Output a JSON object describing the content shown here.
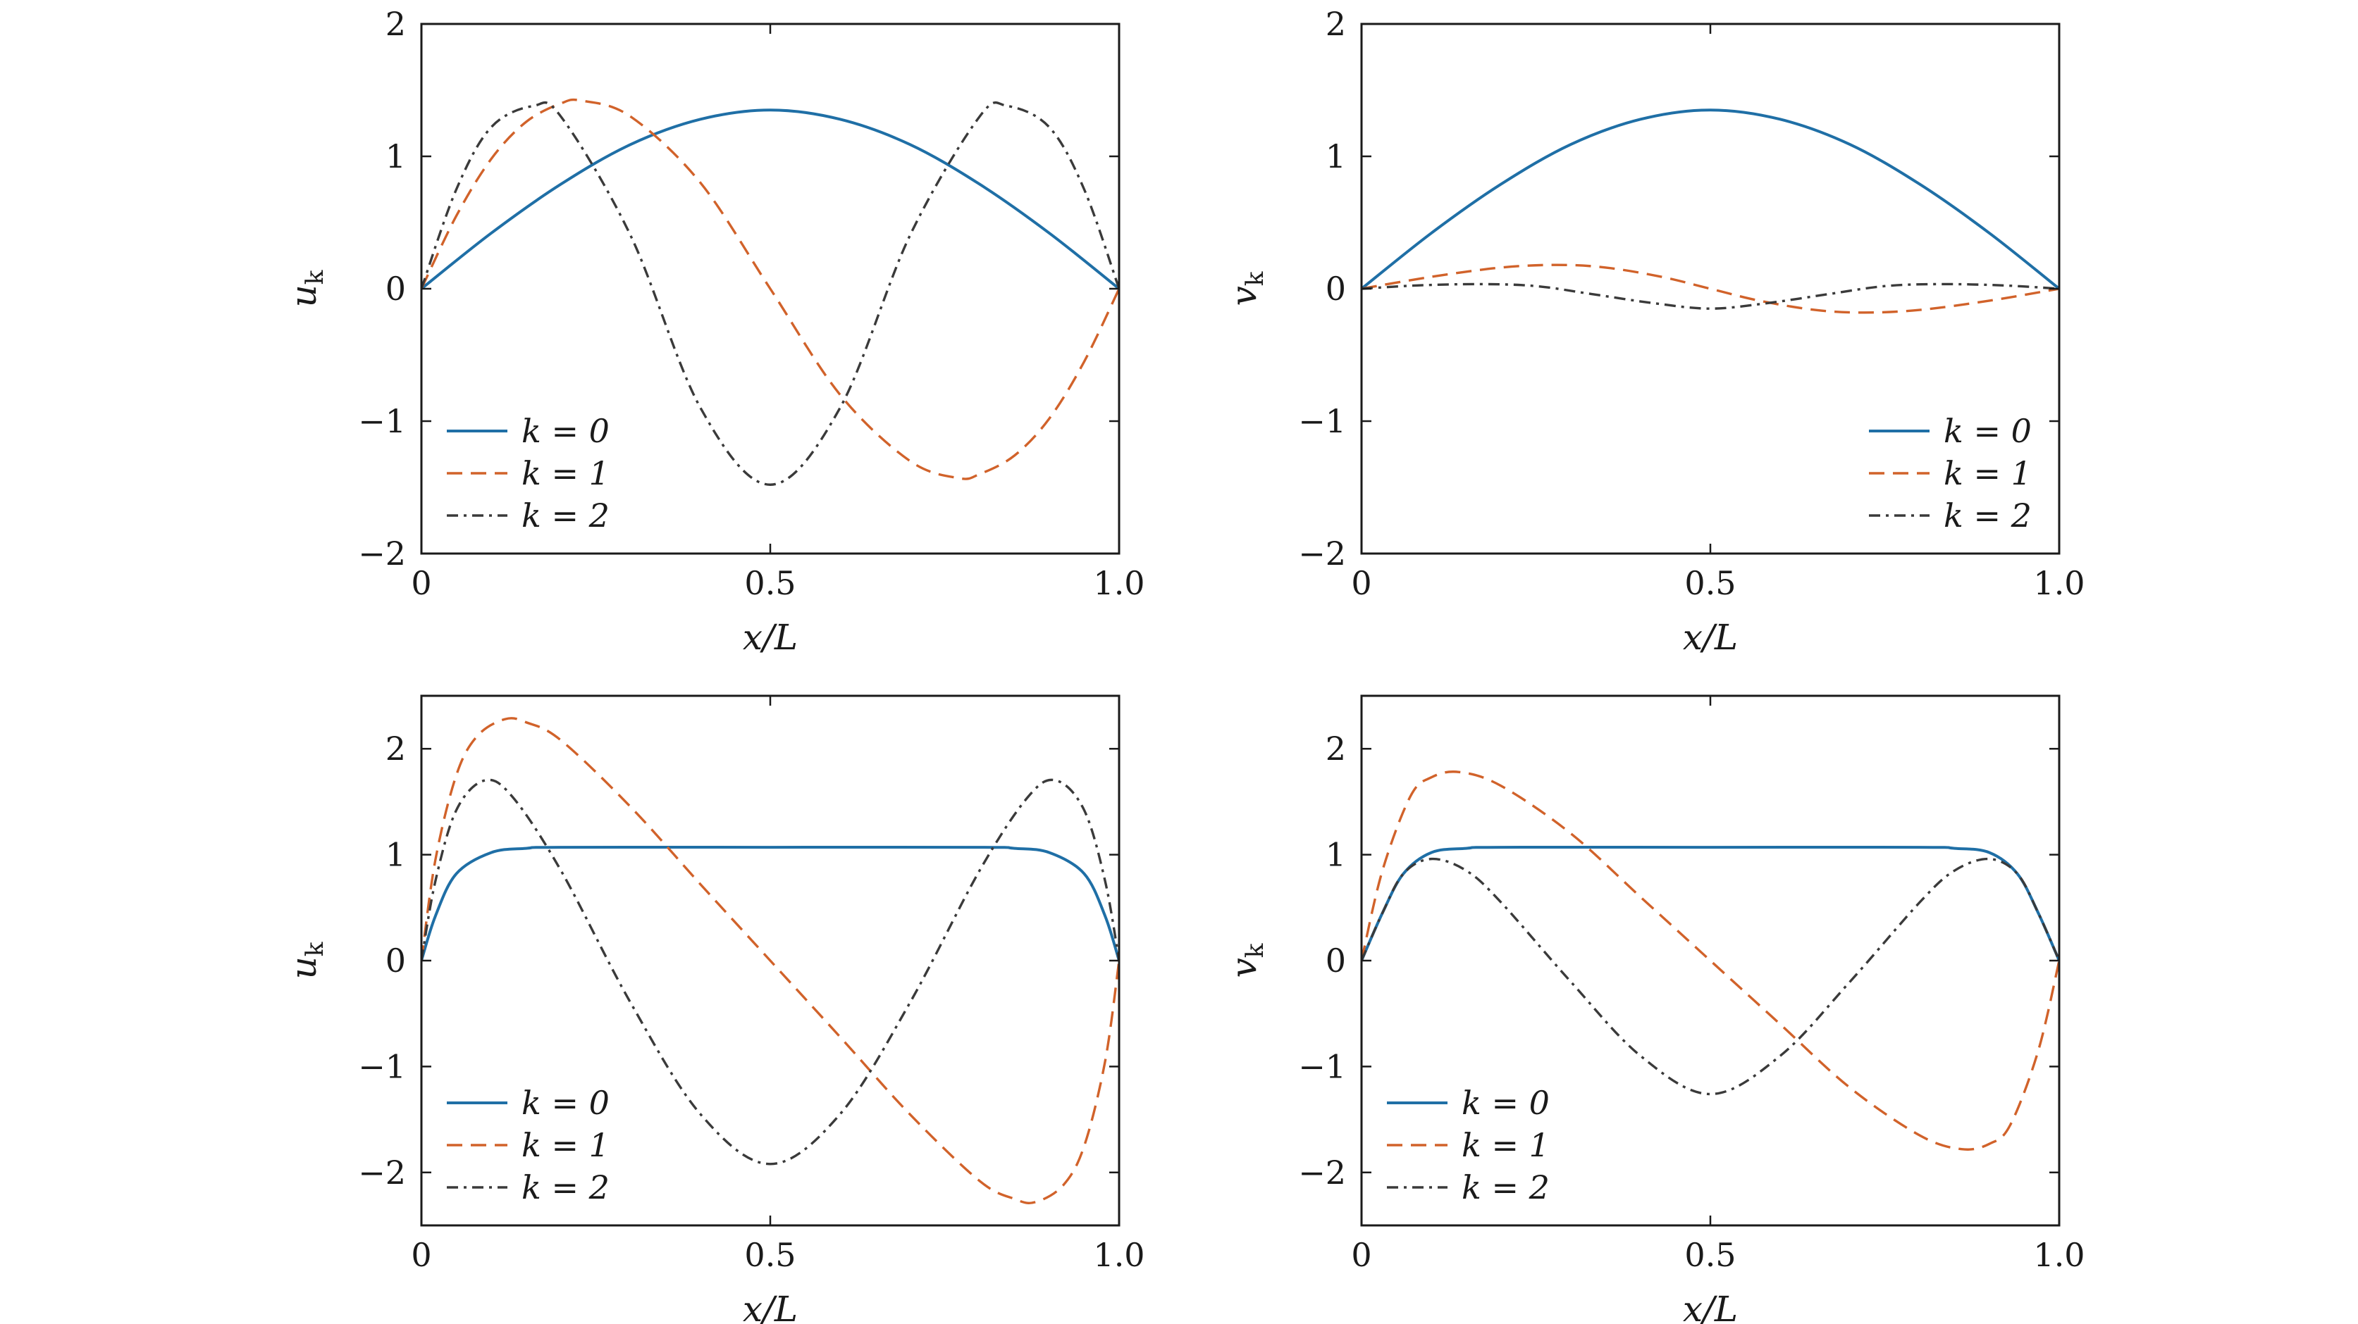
{
  "colors": {
    "k0": "#1f6fa6",
    "k1": "#d1622a",
    "k2": "#3a3a3a",
    "axes": "#1a1a1a"
  },
  "chart_data": [
    {
      "type": "line",
      "title": "",
      "xlabel": "x/L",
      "ylabel": "u_k",
      "xlim": [
        0,
        1
      ],
      "ylim": [
        -2,
        2
      ],
      "xticks": [
        {
          "v": 0,
          "label": "0"
        },
        {
          "v": 0.5,
          "label": "0.5"
        },
        {
          "v": 1,
          "label": "1.0"
        }
      ],
      "yticks": [
        {
          "v": -2,
          "label": "−2"
        },
        {
          "v": -1,
          "label": "−1"
        },
        {
          "v": 0,
          "label": "0"
        },
        {
          "v": 1,
          "label": "1"
        },
        {
          "v": 2,
          "label": "2"
        }
      ],
      "grid": false,
      "legend": "bottom-left",
      "series": [
        {
          "name": "k = 0",
          "style": "solid",
          "x": [
            0,
            0.1,
            0.2,
            0.3,
            0.4,
            0.5,
            0.6,
            0.7,
            0.8,
            0.9,
            1.0
          ],
          "y": [
            0,
            0.42,
            0.79,
            1.09,
            1.28,
            1.35,
            1.28,
            1.09,
            0.79,
            0.42,
            0
          ]
        },
        {
          "name": "k = 1",
          "style": "dashed",
          "x": [
            0,
            0.05,
            0.1,
            0.15,
            0.2,
            0.23,
            0.3,
            0.4,
            0.5,
            0.6,
            0.7,
            0.77,
            0.8,
            0.85,
            0.9,
            0.95,
            1.0
          ],
          "y": [
            0,
            0.55,
            0.98,
            1.26,
            1.4,
            1.42,
            1.3,
            0.8,
            0,
            -0.8,
            -1.3,
            -1.43,
            -1.4,
            -1.26,
            -0.98,
            -0.55,
            0
          ]
        },
        {
          "name": "k = 2",
          "style": "dashdot",
          "x": [
            0,
            0.05,
            0.1,
            0.16,
            0.2,
            0.3,
            0.4,
            0.5,
            0.6,
            0.7,
            0.8,
            0.84,
            0.9,
            0.95,
            1.0
          ],
          "y": [
            0,
            0.75,
            1.22,
            1.38,
            1.3,
            0.4,
            -0.9,
            -1.48,
            -0.9,
            0.4,
            1.3,
            1.38,
            1.22,
            0.75,
            0
          ]
        }
      ]
    },
    {
      "type": "line",
      "title": "",
      "xlabel": "x/L",
      "ylabel": "v_k",
      "xlim": [
        0,
        1
      ],
      "ylim": [
        -2,
        2
      ],
      "xticks": [
        {
          "v": 0,
          "label": "0"
        },
        {
          "v": 0.5,
          "label": "0.5"
        },
        {
          "v": 1,
          "label": "1.0"
        }
      ],
      "yticks": [
        {
          "v": -2,
          "label": "−2"
        },
        {
          "v": -1,
          "label": "−1"
        },
        {
          "v": 0,
          "label": "0"
        },
        {
          "v": 1,
          "label": "1"
        },
        {
          "v": 2,
          "label": "2"
        }
      ],
      "grid": false,
      "legend": "bottom-right",
      "series": [
        {
          "name": "k = 0",
          "style": "solid",
          "x": [
            0,
            0.1,
            0.2,
            0.3,
            0.4,
            0.5,
            0.6,
            0.7,
            0.8,
            0.9,
            1.0
          ],
          "y": [
            0,
            0.42,
            0.79,
            1.09,
            1.28,
            1.35,
            1.28,
            1.09,
            0.79,
            0.42,
            0
          ]
        },
        {
          "name": "k = 1",
          "style": "dashed",
          "x": [
            0,
            0.1,
            0.2,
            0.28,
            0.35,
            0.43,
            0.5,
            0.57,
            0.65,
            0.72,
            0.8,
            0.9,
            1.0
          ],
          "y": [
            0,
            0.09,
            0.16,
            0.18,
            0.16,
            0.09,
            0,
            -0.09,
            -0.16,
            -0.18,
            -0.16,
            -0.09,
            0
          ]
        },
        {
          "name": "k = 2",
          "style": "dashdot",
          "x": [
            0,
            0.08,
            0.17,
            0.25,
            0.33,
            0.42,
            0.5,
            0.58,
            0.67,
            0.75,
            0.83,
            0.92,
            1.0
          ],
          "y": [
            0,
            0.025,
            0.035,
            0.02,
            -0.04,
            -0.11,
            -0.15,
            -0.11,
            -0.04,
            0.02,
            0.035,
            0.025,
            0
          ]
        }
      ]
    },
    {
      "type": "line",
      "title": "",
      "xlabel": "x/L",
      "ylabel": "u_k",
      "xlim": [
        0,
        1
      ],
      "ylim": [
        -2.5,
        2.5
      ],
      "xticks": [
        {
          "v": 0,
          "label": "0"
        },
        {
          "v": 0.5,
          "label": "0.5"
        },
        {
          "v": 1,
          "label": "1.0"
        }
      ],
      "yticks": [
        {
          "v": -2,
          "label": "−2"
        },
        {
          "v": -1,
          "label": "−1"
        },
        {
          "v": 0,
          "label": "0"
        },
        {
          "v": 1,
          "label": "1"
        },
        {
          "v": 2,
          "label": "2"
        }
      ],
      "grid": false,
      "legend": "bottom-left",
      "series": [
        {
          "name": "k = 0",
          "style": "solid",
          "x": [
            0,
            0.02,
            0.05,
            0.1,
            0.15,
            0.2,
            0.5,
            0.8,
            0.85,
            0.9,
            0.95,
            0.98,
            1.0
          ],
          "y": [
            0,
            0.42,
            0.82,
            1.02,
            1.06,
            1.07,
            1.07,
            1.07,
            1.06,
            1.02,
            0.82,
            0.42,
            0
          ]
        },
        {
          "name": "k = 1",
          "style": "dashed",
          "x": [
            0,
            0.02,
            0.05,
            0.08,
            0.12,
            0.15,
            0.2,
            0.3,
            0.4,
            0.5,
            0.6,
            0.7,
            0.8,
            0.85,
            0.88,
            0.92,
            0.95,
            0.98,
            1.0
          ],
          "y": [
            0,
            0.95,
            1.75,
            2.12,
            2.28,
            2.25,
            2.08,
            1.45,
            0.72,
            0,
            -0.72,
            -1.45,
            -2.08,
            -2.25,
            -2.28,
            -2.12,
            -1.75,
            -0.95,
            0
          ]
        },
        {
          "name": "k = 2",
          "style": "dashdot",
          "x": [
            0,
            0.02,
            0.05,
            0.09,
            0.13,
            0.2,
            0.3,
            0.4,
            0.5,
            0.6,
            0.7,
            0.8,
            0.87,
            0.91,
            0.95,
            0.98,
            1.0
          ],
          "y": [
            0,
            0.75,
            1.42,
            1.7,
            1.55,
            0.85,
            -0.4,
            -1.45,
            -1.92,
            -1.45,
            -0.4,
            0.85,
            1.55,
            1.7,
            1.42,
            0.75,
            0
          ]
        }
      ]
    },
    {
      "type": "line",
      "title": "",
      "xlabel": "x/L",
      "ylabel": "v_k",
      "xlim": [
        0,
        1
      ],
      "ylim": [
        -2.5,
        2.5
      ],
      "xticks": [
        {
          "v": 0,
          "label": "0"
        },
        {
          "v": 0.5,
          "label": "0.5"
        },
        {
          "v": 1,
          "label": "1.0"
        }
      ],
      "yticks": [
        {
          "v": -2,
          "label": "−2"
        },
        {
          "v": -1,
          "label": "−1"
        },
        {
          "v": 0,
          "label": "0"
        },
        {
          "v": 1,
          "label": "1"
        },
        {
          "v": 2,
          "label": "2"
        }
      ],
      "grid": false,
      "legend": "bottom-left",
      "series": [
        {
          "name": "k = 0",
          "style": "solid",
          "x": [
            0,
            0.03,
            0.06,
            0.1,
            0.15,
            0.2,
            0.5,
            0.8,
            0.85,
            0.9,
            0.94,
            0.97,
            1.0
          ],
          "y": [
            0,
            0.45,
            0.82,
            1.02,
            1.06,
            1.07,
            1.07,
            1.07,
            1.06,
            1.02,
            0.82,
            0.45,
            0
          ]
        },
        {
          "name": "k = 1",
          "style": "dashed",
          "x": [
            0,
            0.03,
            0.07,
            0.1,
            0.14,
            0.2,
            0.3,
            0.4,
            0.5,
            0.6,
            0.7,
            0.8,
            0.86,
            0.9,
            0.93,
            0.97,
            1.0
          ],
          "y": [
            0,
            0.85,
            1.55,
            1.73,
            1.78,
            1.65,
            1.2,
            0.6,
            0,
            -0.6,
            -1.2,
            -1.65,
            -1.78,
            -1.73,
            -1.55,
            -0.85,
            0
          ]
        },
        {
          "name": "k = 2",
          "style": "dashdot",
          "x": [
            0,
            0.03,
            0.06,
            0.1,
            0.15,
            0.2,
            0.3,
            0.4,
            0.5,
            0.6,
            0.7,
            0.8,
            0.85,
            0.9,
            0.94,
            0.97,
            1.0
          ],
          "y": [
            0,
            0.45,
            0.82,
            0.96,
            0.85,
            0.55,
            -0.2,
            -0.9,
            -1.26,
            -0.9,
            -0.2,
            0.55,
            0.85,
            0.96,
            0.82,
            0.45,
            0
          ]
        }
      ]
    }
  ]
}
